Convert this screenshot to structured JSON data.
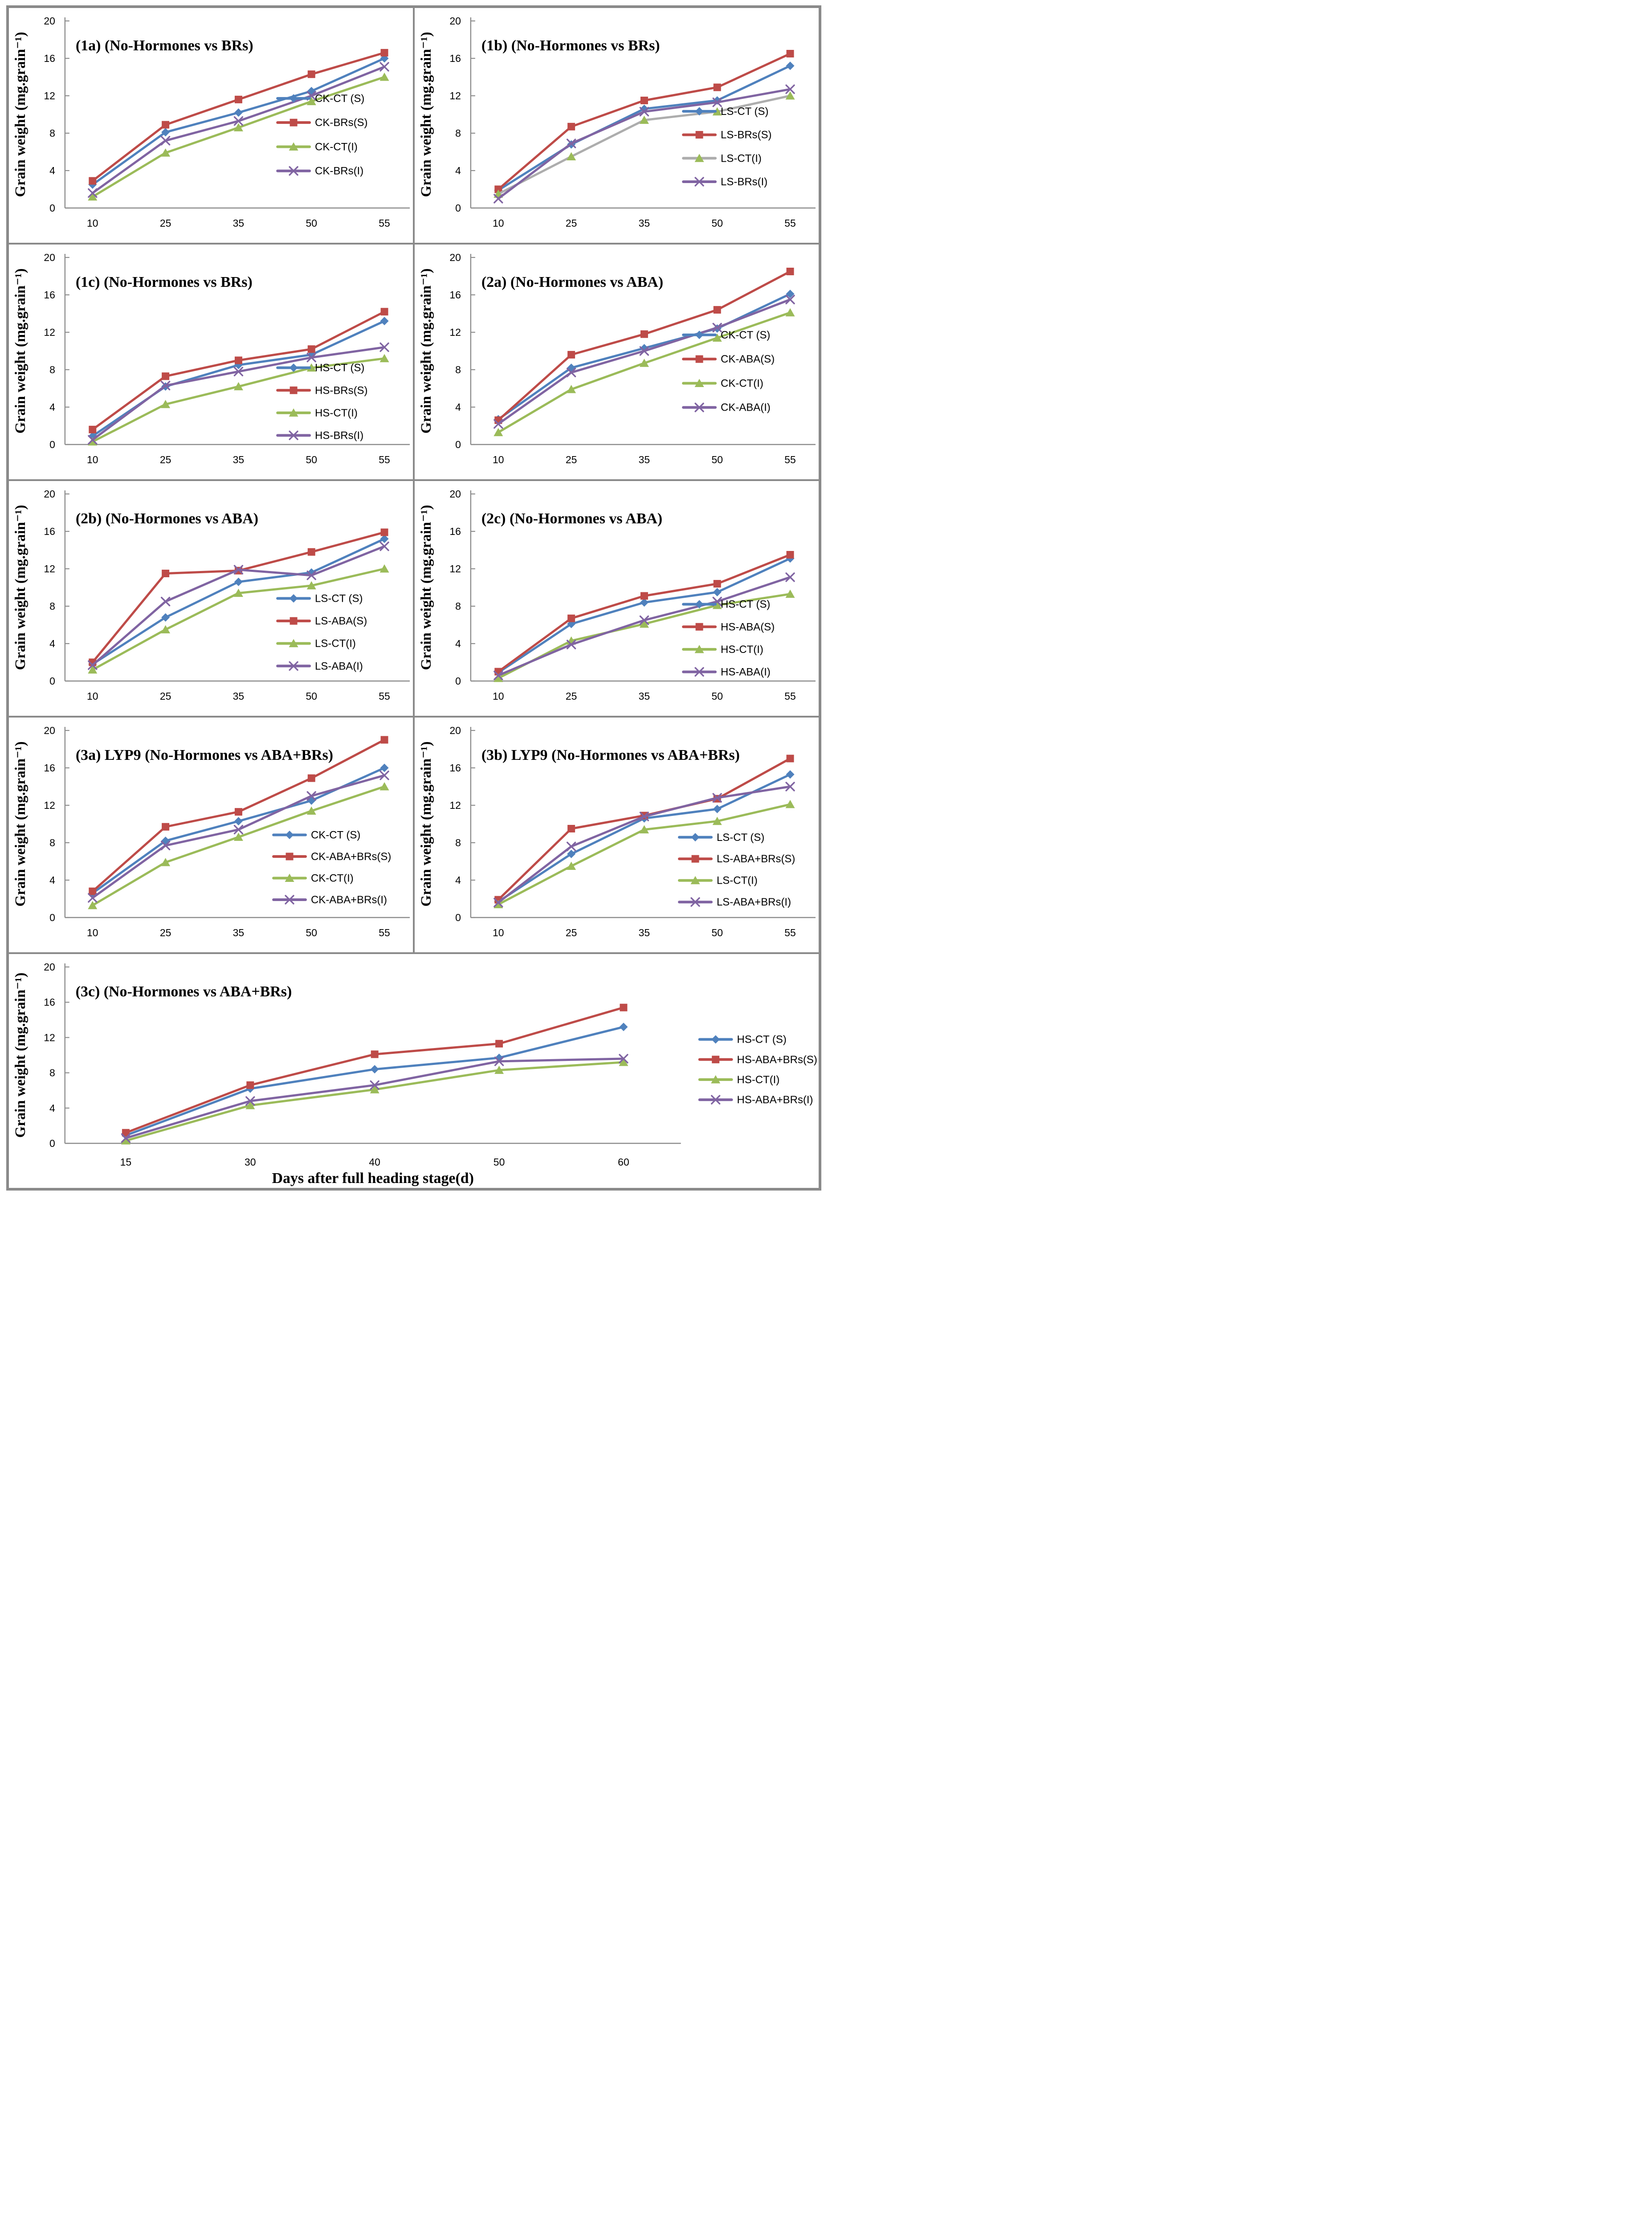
{
  "figure": {
    "ylabel": "Grain weight (mg.grain⁻¹)",
    "xlabel": "Days after full heading stage(d)"
  },
  "style": {
    "series_colors": {
      "blue": "#4F81BD",
      "red": "#BE4B48",
      "green": "#9BBB59",
      "purple": "#8064A2"
    },
    "gray_line": "#ADADAD",
    "axis_color": "#8C8C8C",
    "border_color": "#8A8A8A",
    "text_color": "#000000",
    "background": "#FFFFFF"
  },
  "chart_data": [
    {
      "id": "1a",
      "type": "line",
      "title": "(1a) (No-Hormones vs BRs)",
      "ylabel": "Grain weight (mg.grain⁻¹)",
      "categories": [
        "10",
        "25",
        "35",
        "50",
        "55"
      ],
      "ylim": [
        0,
        20
      ],
      "yticks": [
        0,
        4,
        8,
        12,
        16,
        20
      ],
      "grid": false,
      "wide": false,
      "legend": {
        "position": "inside-right",
        "x": 0.665,
        "y": 0.385,
        "dy": 0.103
      },
      "series": [
        {
          "name": "CK-CT (S)",
          "marker": "diamond",
          "color_key": "blue",
          "values": [
            2.5,
            8.1,
            10.2,
            12.5,
            16.0
          ]
        },
        {
          "name": "CK-BRs(S)",
          "marker": "square",
          "color_key": "red",
          "values": [
            2.9,
            8.9,
            11.6,
            14.3,
            16.6
          ]
        },
        {
          "name": "CK-CT(I)",
          "marker": "triangle",
          "color_key": "green",
          "values": [
            1.2,
            5.9,
            8.6,
            11.4,
            14.0
          ]
        },
        {
          "name": "CK-BRs(I)",
          "marker": "x",
          "color_key": "purple",
          "values": [
            1.6,
            7.2,
            9.3,
            12.0,
            15.1
          ]
        }
      ]
    },
    {
      "id": "1b",
      "type": "line",
      "title": "(1b) (No-Hormones vs BRs)",
      "ylabel": "Grain weight (mg.grain⁻¹)",
      "categories": [
        "10",
        "25",
        "35",
        "50",
        "55"
      ],
      "ylim": [
        0,
        20
      ],
      "yticks": [
        0,
        4,
        8,
        12,
        16,
        20
      ],
      "grid": false,
      "wide": false,
      "legend": {
        "position": "inside-right",
        "x": 0.665,
        "y": 0.44,
        "dy": 0.1
      },
      "series": [
        {
          "name": "LS-CT (S)",
          "marker": "diamond",
          "color_key": "blue",
          "values": [
            1.9,
            6.8,
            10.6,
            11.5,
            15.2
          ]
        },
        {
          "name": "LS-BRs(S)",
          "marker": "square",
          "color_key": "red",
          "values": [
            2.0,
            8.7,
            11.5,
            12.9,
            16.5
          ]
        },
        {
          "name": "LS-CT(I)",
          "marker": "triangle",
          "color_key": "green",
          "line_color": "#ADADAD",
          "values": [
            1.5,
            5.5,
            9.4,
            10.3,
            12.0
          ]
        },
        {
          "name": "LS-BRs(I)",
          "marker": "x",
          "color_key": "purple",
          "values": [
            1.0,
            6.9,
            10.3,
            11.3,
            12.7
          ]
        }
      ]
    },
    {
      "id": "1c",
      "type": "line",
      "title": "(1c) (No-Hormones vs BRs)",
      "ylabel": "Grain weight (mg.grain⁻¹)",
      "categories": [
        "10",
        "25",
        "35",
        "50",
        "55"
      ],
      "ylim": [
        0,
        20
      ],
      "yticks": [
        0,
        4,
        8,
        12,
        16,
        20
      ],
      "grid": false,
      "wide": false,
      "legend": {
        "position": "inside-right",
        "x": 0.665,
        "y": 0.525,
        "dy": 0.096
      },
      "series": [
        {
          "name": "HS-CT (S)",
          "marker": "diamond",
          "color_key": "blue",
          "values": [
            0.9,
            6.2,
            8.5,
            9.6,
            13.2
          ]
        },
        {
          "name": "HS-BRs(S)",
          "marker": "square",
          "color_key": "red",
          "values": [
            1.6,
            7.3,
            9.0,
            10.2,
            14.2
          ]
        },
        {
          "name": "HS-CT(I)",
          "marker": "triangle",
          "color_key": "green",
          "values": [
            0.3,
            4.3,
            6.2,
            8.2,
            9.2
          ]
        },
        {
          "name": "HS-BRs(I)",
          "marker": "x",
          "color_key": "purple",
          "values": [
            0.5,
            6.3,
            7.8,
            9.3,
            10.4
          ]
        }
      ]
    },
    {
      "id": "2a",
      "type": "line",
      "title": "(2a) (No-Hormones vs ABA)",
      "ylabel": "Grain weight (mg.grain⁻¹)",
      "categories": [
        "10",
        "25",
        "35",
        "50",
        "55"
      ],
      "ylim": [
        0,
        20
      ],
      "yticks": [
        0,
        4,
        8,
        12,
        16,
        20
      ],
      "grid": false,
      "wide": false,
      "legend": {
        "position": "inside-right",
        "x": 0.665,
        "y": 0.385,
        "dy": 0.103
      },
      "series": [
        {
          "name": "CK-CT (S)",
          "marker": "diamond",
          "color_key": "blue",
          "values": [
            2.7,
            8.2,
            10.3,
            12.4,
            16.1
          ]
        },
        {
          "name": "CK-ABA(S)",
          "marker": "square",
          "color_key": "red",
          "values": [
            2.6,
            9.6,
            11.8,
            14.4,
            18.5
          ]
        },
        {
          "name": "CK-CT(I)",
          "marker": "triangle",
          "color_key": "green",
          "values": [
            1.3,
            5.9,
            8.7,
            11.4,
            14.1
          ]
        },
        {
          "name": "CK-ABA(I)",
          "marker": "x",
          "color_key": "purple",
          "values": [
            2.2,
            7.7,
            10.0,
            12.5,
            15.5
          ]
        }
      ]
    },
    {
      "id": "2b",
      "type": "line",
      "title": "(2b) (No-Hormones vs ABA)",
      "ylabel": "Grain weight (mg.grain⁻¹)",
      "categories": [
        "10",
        "25",
        "35",
        "50",
        "55"
      ],
      "ylim": [
        0,
        20
      ],
      "yticks": [
        0,
        4,
        8,
        12,
        16,
        20
      ],
      "grid": false,
      "wide": false,
      "legend": {
        "position": "inside-right",
        "x": 0.665,
        "y": 0.5,
        "dy": 0.096
      },
      "series": [
        {
          "name": "LS-CT (S)",
          "marker": "diamond",
          "color_key": "blue",
          "values": [
            1.8,
            6.8,
            10.6,
            11.6,
            15.2
          ]
        },
        {
          "name": "LS-ABA(S)",
          "marker": "square",
          "color_key": "red",
          "values": [
            2.0,
            11.5,
            11.8,
            13.8,
            15.9
          ]
        },
        {
          "name": "LS-CT(I)",
          "marker": "triangle",
          "color_key": "green",
          "values": [
            1.2,
            5.5,
            9.4,
            10.2,
            12.0
          ]
        },
        {
          "name": "LS-ABA(I)",
          "marker": "x",
          "color_key": "purple",
          "values": [
            1.7,
            8.5,
            11.9,
            11.3,
            14.4
          ]
        }
      ]
    },
    {
      "id": "2c",
      "type": "line",
      "title": "(2c) (No-Hormones vs ABA)",
      "ylabel": "Grain weight (mg.grain⁻¹)",
      "categories": [
        "10",
        "25",
        "35",
        "50",
        "55"
      ],
      "ylim": [
        0,
        20
      ],
      "yticks": [
        0,
        4,
        8,
        12,
        16,
        20
      ],
      "grid": false,
      "wide": false,
      "legend": {
        "position": "inside-right",
        "x": 0.665,
        "y": 0.525,
        "dy": 0.096
      },
      "series": [
        {
          "name": "HS-CT (S)",
          "marker": "diamond",
          "color_key": "blue",
          "values": [
            0.9,
            6.1,
            8.4,
            9.5,
            13.1
          ]
        },
        {
          "name": "HS-ABA(S)",
          "marker": "square",
          "color_key": "red",
          "values": [
            1.0,
            6.7,
            9.1,
            10.4,
            13.5
          ]
        },
        {
          "name": "HS-CT(I)",
          "marker": "triangle",
          "color_key": "green",
          "values": [
            0.3,
            4.3,
            6.1,
            8.1,
            9.3
          ]
        },
        {
          "name": "HS-ABA(I)",
          "marker": "x",
          "color_key": "purple",
          "values": [
            0.6,
            3.9,
            6.5,
            8.5,
            11.1
          ]
        }
      ]
    },
    {
      "id": "3a",
      "type": "line",
      "title": "(3a) LYP9 (No-Hormones vs ABA+BRs)",
      "ylabel": "Grain weight (mg.grain⁻¹)",
      "categories": [
        "10",
        "25",
        "35",
        "50",
        "55"
      ],
      "ylim": [
        0,
        20
      ],
      "yticks": [
        0,
        4,
        8,
        12,
        16,
        20
      ],
      "grid": false,
      "wide": false,
      "legend": {
        "position": "inside-right",
        "x": 0.655,
        "y": 0.5,
        "dy": 0.092
      },
      "series": [
        {
          "name": "CK-CT (S)",
          "marker": "diamond",
          "color_key": "blue",
          "values": [
            2.6,
            8.2,
            10.3,
            12.5,
            16.0
          ]
        },
        {
          "name": "CK-ABA+BRs(S)",
          "marker": "square",
          "color_key": "red",
          "values": [
            2.8,
            9.7,
            11.3,
            14.9,
            19.0
          ]
        },
        {
          "name": "CK-CT(I)",
          "marker": "triangle",
          "color_key": "green",
          "values": [
            1.3,
            5.9,
            8.6,
            11.4,
            14.0
          ]
        },
        {
          "name": "CK-ABA+BRs(I)",
          "marker": "x",
          "color_key": "purple",
          "values": [
            2.1,
            7.7,
            9.4,
            13.0,
            15.2
          ]
        }
      ]
    },
    {
      "id": "3b",
      "type": "line",
      "title": "(3b) LYP9 (No-Hormones vs ABA+BRs)",
      "ylabel": "Grain weight (mg.grain⁻¹)",
      "categories": [
        "10",
        "25",
        "35",
        "50",
        "55"
      ],
      "ylim": [
        0,
        20
      ],
      "yticks": [
        0,
        4,
        8,
        12,
        16,
        20
      ],
      "grid": false,
      "wide": false,
      "legend": {
        "position": "inside-right",
        "x": 0.655,
        "y": 0.51,
        "dy": 0.092
      },
      "series": [
        {
          "name": "LS-CT (S)",
          "marker": "diamond",
          "color_key": "blue",
          "values": [
            1.7,
            6.8,
            10.6,
            11.6,
            15.3
          ]
        },
        {
          "name": "LS-ABA+BRs(S)",
          "marker": "square",
          "color_key": "red",
          "values": [
            1.9,
            9.5,
            10.9,
            12.7,
            17.0
          ]
        },
        {
          "name": "LS-CT(I)",
          "marker": "triangle",
          "color_key": "green",
          "values": [
            1.4,
            5.5,
            9.4,
            10.3,
            12.1
          ]
        },
        {
          "name": "LS-ABA+BRs(I)",
          "marker": "x",
          "color_key": "purple",
          "values": [
            1.6,
            7.6,
            10.8,
            12.8,
            14.0
          ]
        }
      ]
    },
    {
      "id": "3c",
      "type": "line",
      "title": "(3c) (No-Hormones vs ABA+BRs)",
      "ylabel": "Grain weight (mg.grain⁻¹)",
      "xlabel": "Days after full heading stage(d)",
      "categories": [
        "15",
        "30",
        "40",
        "50",
        "60"
      ],
      "ylim": [
        0,
        20
      ],
      "yticks": [
        0,
        4,
        8,
        12,
        16,
        20
      ],
      "grid": false,
      "wide": true,
      "legend": {
        "position": "outside-right",
        "x": 0.853,
        "y": 0.365,
        "dy": 0.086
      },
      "series": [
        {
          "name": "HS-CT (S)",
          "marker": "diamond",
          "color_key": "blue",
          "values": [
            0.9,
            6.2,
            8.4,
            9.7,
            13.2
          ]
        },
        {
          "name": "HS-ABA+BRs(S)",
          "marker": "square",
          "color_key": "red",
          "values": [
            1.2,
            6.6,
            10.1,
            11.3,
            15.4
          ]
        },
        {
          "name": "HS-CT(I)",
          "marker": "triangle",
          "color_key": "green",
          "values": [
            0.3,
            4.3,
            6.1,
            8.3,
            9.2
          ]
        },
        {
          "name": "HS-ABA+BRs(I)",
          "marker": "x",
          "color_key": "purple",
          "values": [
            0.6,
            4.8,
            6.6,
            9.3,
            9.6
          ]
        }
      ]
    }
  ]
}
